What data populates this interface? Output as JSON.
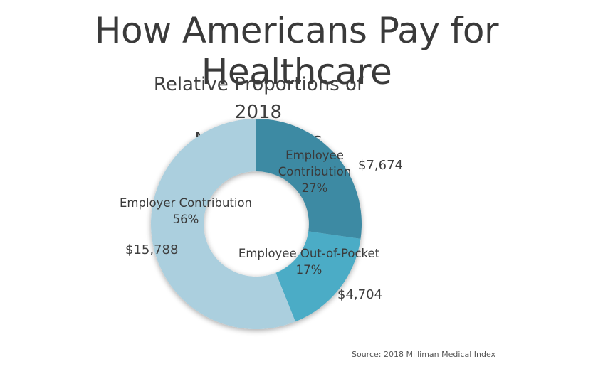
{
  "title": "How Americans Pay for Healthcare",
  "source": "Source: 2018 Milliman Medical Index",
  "chart_data": {
    "type": "pie",
    "variant": "donut",
    "title_lines": [
      "Relative Proportions of 2018",
      "Medical Costs"
    ],
    "legend": "none",
    "slices": [
      {
        "label_lines": [
          "Employee",
          "Contribution"
        ],
        "percent_label": "27%",
        "value": 7674,
        "value_label": "$7,674",
        "color": "#3d8aa3"
      },
      {
        "label_lines": [
          "Employee Out-of-Pocket"
        ],
        "percent_label": "17%",
        "value": 4704,
        "value_label": "$4,704",
        "color": "#4bacc6"
      },
      {
        "label_lines": [
          "Employer Contribution"
        ],
        "percent_label": "56%",
        "value": 15788,
        "value_label": "$15,788",
        "color": "#abcfde"
      }
    ]
  }
}
